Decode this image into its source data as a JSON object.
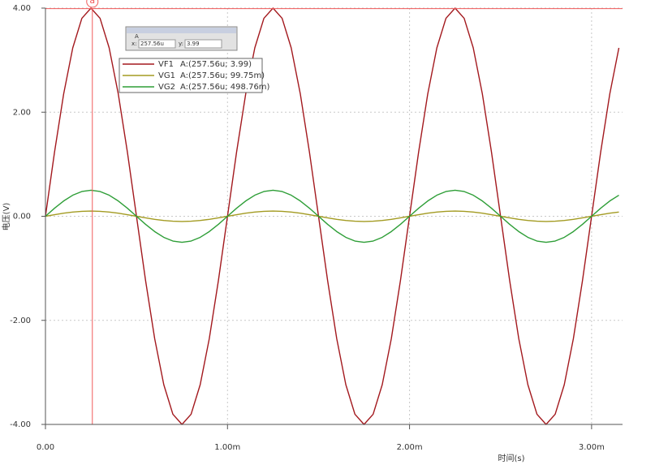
{
  "chart_data": {
    "type": "line",
    "xlabel": "时间(s)",
    "ylabel": "电压(V)",
    "xlim": [
      0,
      0.00317
    ],
    "ylim": [
      -4,
      4
    ],
    "xticks": [
      {
        "value": 0,
        "label": "0.00"
      },
      {
        "value": 0.001,
        "label": "1.00m"
      },
      {
        "value": 0.002,
        "label": "2.00m"
      },
      {
        "value": 0.003,
        "label": "3.00m"
      }
    ],
    "yticks": [
      {
        "value": -4,
        "label": "-4.00"
      },
      {
        "value": -2,
        "label": "-2.00"
      },
      {
        "value": 0,
        "label": "0.00"
      },
      {
        "value": 2,
        "label": "2.00"
      },
      {
        "value": 4,
        "label": "4.00"
      }
    ],
    "grid": true,
    "x": [
      0,
      5e-05,
      0.0001,
      0.00015,
      0.0002,
      0.00025,
      0.0003,
      0.00035,
      0.0004,
      0.00045,
      0.0005,
      0.00055,
      0.0006,
      0.00065,
      0.0007,
      0.00075,
      0.0008,
      0.00085,
      0.0009,
      0.00095,
      0.001,
      0.00105,
      0.0011,
      0.00115,
      0.0012,
      0.00125,
      0.0013,
      0.00135,
      0.0014,
      0.00145,
      0.0015,
      0.00155,
      0.0016,
      0.00165,
      0.0017,
      0.00175,
      0.0018,
      0.00185,
      0.0019,
      0.00195,
      0.002,
      0.00205,
      0.0021,
      0.00215,
      0.0022,
      0.00225,
      0.0023,
      0.00235,
      0.0024,
      0.00245,
      0.0025,
      0.00255,
      0.0026,
      0.00265,
      0.0027,
      0.00275,
      0.0028,
      0.00285,
      0.0029,
      0.00295,
      0.003,
      0.00305,
      0.0031,
      0.00315
    ],
    "series": [
      {
        "name": "VF1",
        "color": "#a3191e",
        "readout": "A:(257.56u; 3.99)",
        "values": [
          0,
          1.236,
          2.351,
          3.236,
          3.804,
          4,
          3.804,
          3.236,
          2.351,
          1.236,
          0,
          -1.236,
          -2.351,
          -3.236,
          -3.804,
          -4,
          -3.804,
          -3.236,
          -2.351,
          -1.236,
          0,
          1.236,
          2.351,
          3.236,
          3.804,
          4,
          3.804,
          3.236,
          2.351,
          1.236,
          0,
          -1.236,
          -2.351,
          -3.236,
          -3.804,
          -4,
          -3.804,
          -3.236,
          -2.351,
          -1.236,
          0,
          1.236,
          2.351,
          3.236,
          3.804,
          4,
          3.804,
          3.236,
          2.351,
          1.236,
          0,
          -1.236,
          -2.351,
          -3.236,
          -3.804,
          -4,
          -3.804,
          -3.236,
          -2.351,
          -1.236,
          0,
          1.236,
          2.351,
          3.236
        ]
      },
      {
        "name": "VG1",
        "color": "#a39b22",
        "readout": "A:(257.56u; 99.75m)",
        "values": [
          0,
          0.031,
          0.059,
          0.081,
          0.095,
          0.1,
          0.095,
          0.081,
          0.059,
          0.031,
          0,
          -0.031,
          -0.059,
          -0.081,
          -0.095,
          -0.1,
          -0.095,
          -0.081,
          -0.059,
          -0.031,
          0,
          0.031,
          0.059,
          0.081,
          0.095,
          0.1,
          0.095,
          0.081,
          0.059,
          0.031,
          0,
          -0.031,
          -0.059,
          -0.081,
          -0.095,
          -0.1,
          -0.095,
          -0.081,
          -0.059,
          -0.031,
          0,
          0.031,
          0.059,
          0.081,
          0.095,
          0.1,
          0.095,
          0.081,
          0.059,
          0.031,
          0,
          -0.031,
          -0.059,
          -0.081,
          -0.095,
          -0.1,
          -0.095,
          -0.081,
          -0.059,
          -0.031,
          0,
          0.031,
          0.059,
          0.081
        ]
      },
      {
        "name": "VG2",
        "color": "#2e9e37",
        "readout": "A:(257.56u; 498.76m)",
        "values": [
          0,
          0.155,
          0.294,
          0.405,
          0.476,
          0.5,
          0.476,
          0.405,
          0.294,
          0.155,
          0,
          -0.155,
          -0.294,
          -0.405,
          -0.476,
          -0.5,
          -0.476,
          -0.405,
          -0.294,
          -0.155,
          0,
          0.155,
          0.294,
          0.405,
          0.476,
          0.5,
          0.476,
          0.405,
          0.294,
          0.155,
          0,
          -0.155,
          -0.294,
          -0.405,
          -0.476,
          -0.5,
          -0.476,
          -0.405,
          -0.294,
          -0.155,
          0,
          0.155,
          0.294,
          0.405,
          0.476,
          0.5,
          0.476,
          0.405,
          0.294,
          0.155,
          0,
          -0.155,
          -0.294,
          -0.405,
          -0.476,
          -0.5,
          -0.476,
          -0.405,
          -0.294,
          -0.155,
          0,
          0.155,
          0.294,
          0.405
        ]
      }
    ],
    "cursor": {
      "marker": "a",
      "color": "#f05a5a",
      "x": 0.00025756,
      "y": 3.99,
      "box_title": "A",
      "x_caption": "x:",
      "x_text": "257.56u",
      "y_caption": "y:"
    }
  }
}
